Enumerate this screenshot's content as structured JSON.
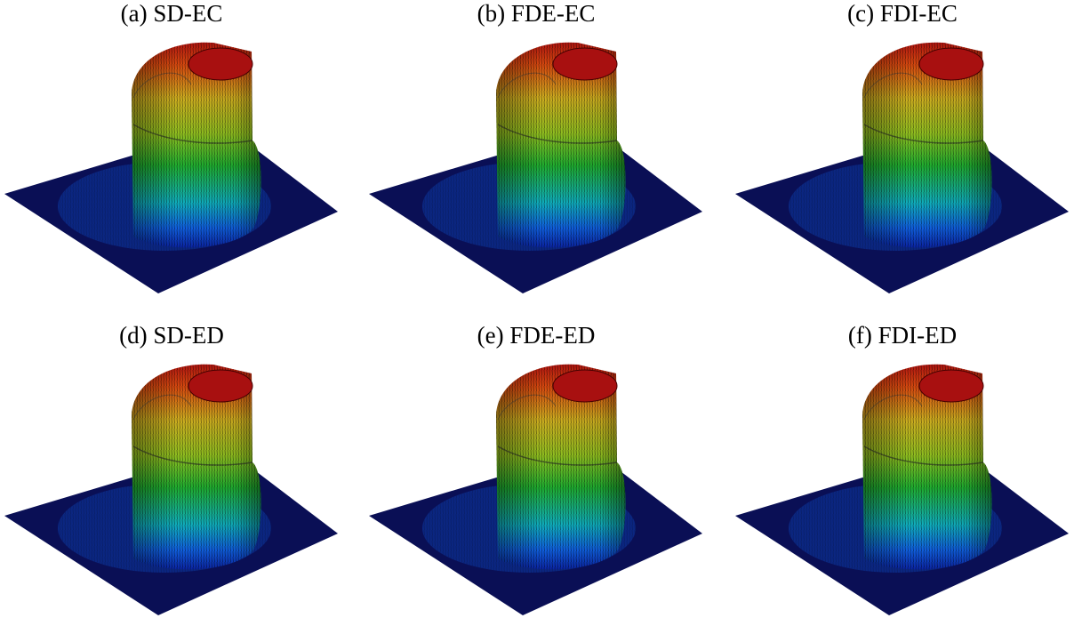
{
  "figure": {
    "panels": [
      {
        "caption": "(a) SD-EC"
      },
      {
        "caption": "(b) FDE-EC"
      },
      {
        "caption": "(c) FDI-EC"
      },
      {
        "caption": "(d) SD-ED"
      },
      {
        "caption": "(e) FDE-ED"
      },
      {
        "caption": "(f) FDI-ED"
      }
    ]
  }
}
